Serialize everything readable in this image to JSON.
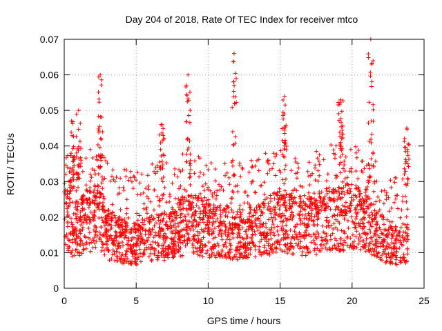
{
  "chart_data": {
    "type": "scatter",
    "title": "Day 204 of 2018, Rate Of TEC Index for receiver mtco",
    "xlabel": "GPS time / hours",
    "ylabel": "ROTI / TECUs",
    "xlim": [
      0,
      25
    ],
    "ylim": [
      0,
      0.07
    ],
    "xticks": [
      "0",
      "5",
      "10",
      "15",
      "20",
      "25"
    ],
    "yticks": [
      "0",
      "0.01",
      "0.02",
      "0.03",
      "0.04",
      "0.05",
      "0.06",
      "0.07"
    ],
    "xtick_values": [
      0,
      5,
      10,
      15,
      20,
      25
    ],
    "ytick_values": [
      0,
      0.01,
      0.02,
      0.03,
      0.04,
      0.05,
      0.06,
      0.07
    ],
    "grid": true,
    "marker": "+",
    "color": "#ff0000",
    "x_end": 23.9,
    "baseline_profile": [
      [
        0.0,
        0.022
      ],
      [
        0.5,
        0.018
      ],
      [
        1.0,
        0.017
      ],
      [
        1.5,
        0.02
      ],
      [
        2.0,
        0.021
      ],
      [
        2.5,
        0.022
      ],
      [
        3.0,
        0.016
      ],
      [
        3.5,
        0.015
      ],
      [
        4.0,
        0.014
      ],
      [
        5.0,
        0.013
      ],
      [
        6.0,
        0.015
      ],
      [
        7.0,
        0.015
      ],
      [
        8.0,
        0.018
      ],
      [
        9.0,
        0.019
      ],
      [
        10.0,
        0.017
      ],
      [
        11.0,
        0.017
      ],
      [
        12.0,
        0.016
      ],
      [
        13.0,
        0.016
      ],
      [
        14.0,
        0.018
      ],
      [
        15.0,
        0.02
      ],
      [
        16.0,
        0.019
      ],
      [
        17.0,
        0.018
      ],
      [
        18.0,
        0.02
      ],
      [
        19.0,
        0.021
      ],
      [
        20.0,
        0.021
      ],
      [
        21.0,
        0.02
      ],
      [
        22.0,
        0.015
      ],
      [
        23.0,
        0.013
      ],
      [
        23.9,
        0.014
      ]
    ],
    "peaks": [
      {
        "x": 0.5,
        "y": 0.047
      },
      {
        "x": 1.0,
        "y": 0.05
      },
      {
        "x": 2.5,
        "y": 0.06
      },
      {
        "x": 6.8,
        "y": 0.046
      },
      {
        "x": 8.6,
        "y": 0.06
      },
      {
        "x": 11.8,
        "y": 0.066
      },
      {
        "x": 15.3,
        "y": 0.054
      },
      {
        "x": 19.2,
        "y": 0.053
      },
      {
        "x": 21.3,
        "y": 0.07
      },
      {
        "x": 23.8,
        "y": 0.045
      }
    ]
  }
}
